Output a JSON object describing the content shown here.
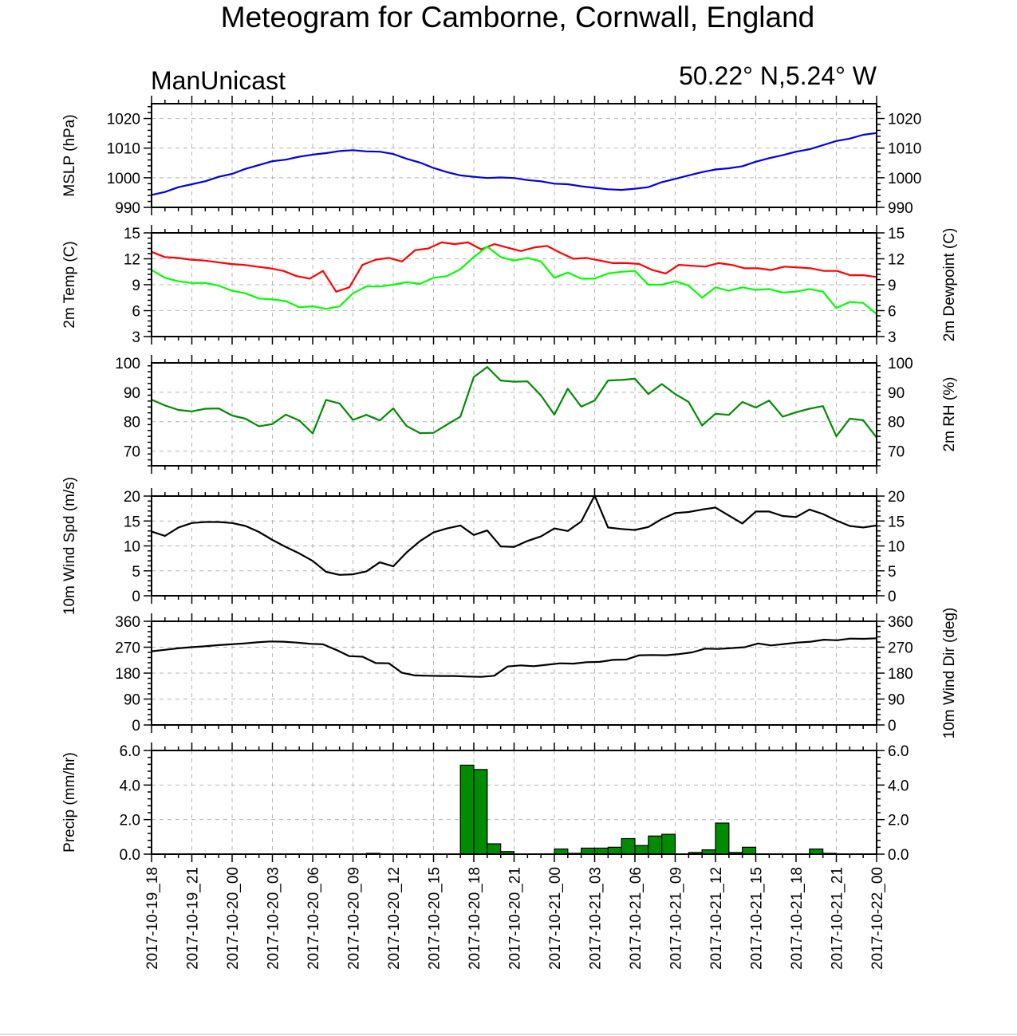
{
  "title": "Meteogram for Camborne, Cornwall, England",
  "model": "ManUnicast",
  "location": "50.22° N,5.24° W",
  "chart_data": {
    "type": "line",
    "x_labels": [
      "2017-10-19_18",
      "2017-10-19_21",
      "2017-10-20_00",
      "2017-10-20_03",
      "2017-10-20_06",
      "2017-10-20_09",
      "2017-10-20_12",
      "2017-10-20_15",
      "2017-10-20_18",
      "2017-10-20_21",
      "2017-10-21_00",
      "2017-10-21_03",
      "2017-10-21_06",
      "2017-10-21_09",
      "2017-10-21_12",
      "2017-10-21_15",
      "2017-10-21_18",
      "2017-10-21_21",
      "2017-10-22_00"
    ],
    "x_range_hours": [
      0,
      54
    ],
    "grid": true,
    "panels": [
      {
        "id": "mslp",
        "ylabel_left": "MSLP (hPa)",
        "ylabel_right": "",
        "ylim": [
          990,
          1025
        ],
        "yticks": [
          990,
          1000,
          1010,
          1020
        ],
        "ytick_labels": [
          "990",
          "1000",
          "1010",
          "1020"
        ],
        "right_tick_labels": true,
        "series": [
          {
            "color": "#0000e6",
            "type": "line",
            "values": [
              994.2,
              995.2,
              996.8,
              997.8,
              998.8,
              1000.3,
              1001.3,
              1003.0,
              1004.3,
              1005.6,
              1006.1,
              1007.1,
              1007.8,
              1008.3,
              1009.0,
              1009.3,
              1008.9,
              1008.8,
              1008.0,
              1006.4,
              1005.1,
              1003.3,
              1001.9,
              1000.8,
              1000.3,
              999.9,
              1000.1,
              999.9,
              999.2,
              998.8,
              998.0,
              997.8,
              997.1,
              996.6,
              996.1,
              995.9,
              996.3,
              996.8,
              998.5,
              999.6,
              1000.8,
              1001.9,
              1002.8,
              1003.2,
              1003.9,
              1005.4,
              1006.6,
              1007.6,
              1008.8,
              1009.6,
              1011.0,
              1012.4,
              1013.2,
              1014.5,
              1015.1
            ]
          }
        ]
      },
      {
        "id": "temp",
        "ylabel_left": "2m Temp (C)",
        "ylabel_right": "2m Dewpoint (C)",
        "ylim": [
          3,
          15
        ],
        "yticks": [
          3,
          6,
          9,
          12,
          15
        ],
        "ytick_labels": [
          "3",
          "6",
          "9",
          "12",
          "15"
        ],
        "right_tick_labels": true,
        "series": [
          {
            "color": "#ff0000",
            "type": "line",
            "values": [
              12.8,
              12.2,
              12.1,
              11.9,
              11.8,
              11.6,
              11.4,
              11.3,
              11.1,
              10.9,
              10.6,
              10.0,
              9.7,
              10.6,
              8.2,
              8.7,
              11.3,
              11.9,
              12.1,
              11.7,
              13.0,
              13.2,
              13.9,
              13.7,
              13.9,
              13.1,
              13.7,
              13.3,
              12.9,
              13.3,
              13.5,
              12.7,
              12.0,
              12.1,
              11.8,
              11.5,
              11.5,
              11.4,
              10.7,
              10.3,
              11.3,
              11.2,
              11.1,
              11.5,
              11.3,
              10.9,
              10.9,
              10.7,
              11.1,
              11.0,
              10.9,
              10.6,
              10.6,
              10.1,
              10.1,
              9.9
            ]
          },
          {
            "color": "#00ff00",
            "type": "line",
            "values": [
              10.7,
              9.8,
              9.4,
              9.2,
              9.2,
              8.9,
              8.3,
              8.0,
              7.4,
              7.3,
              7.1,
              6.4,
              6.5,
              6.2,
              6.5,
              8.0,
              8.8,
              8.8,
              9.0,
              9.3,
              9.1,
              9.8,
              10.0,
              10.8,
              12.2,
              13.4,
              12.2,
              11.8,
              12.1,
              11.7,
              9.8,
              10.4,
              9.7,
              9.7,
              10.3,
              10.5,
              10.6,
              9.0,
              9.0,
              9.4,
              8.9,
              7.5,
              8.7,
              8.3,
              8.7,
              8.4,
              8.5,
              8.1,
              8.2,
              8.5,
              8.2,
              6.3,
              7.0,
              6.9,
              5.6
            ]
          }
        ]
      },
      {
        "id": "rh",
        "ylabel_left": "",
        "ylabel_right": "2m RH (%)",
        "ylim": [
          65,
          100
        ],
        "yticks": [
          70,
          80,
          90,
          100
        ],
        "ytick_labels": [
          "70",
          "80",
          "90",
          "100"
        ],
        "right_tick_labels": true,
        "series": [
          {
            "color": "#008c00",
            "type": "line",
            "values": [
              87.5,
              85.5,
              84.0,
              83.5,
              84.4,
              84.5,
              82.1,
              81.0,
              78.4,
              79.2,
              82.4,
              80.4,
              76.0,
              87.4,
              86.2,
              80.6,
              82.3,
              80.4,
              84.5,
              78.5,
              76.1,
              76.2,
              79.0,
              81.7,
              95.2,
              98.6,
              94.0,
              93.6,
              93.7,
              88.9,
              82.4,
              91.2,
              85.1,
              87.2,
              94.0,
              94.2,
              94.6,
              89.4,
              92.8,
              89.4,
              86.7,
              78.7,
              82.7,
              82.3,
              86.7,
              84.8,
              87.2,
              81.7,
              83.2,
              84.4,
              85.3,
              75.0,
              81.0,
              80.5,
              74.6
            ]
          }
        ]
      },
      {
        "id": "wspd",
        "ylabel_left": "10m Wind Spd (m/s)",
        "ylabel_right": "",
        "ylim": [
          0,
          20
        ],
        "yticks": [
          0,
          5,
          10,
          15,
          20
        ],
        "ytick_labels": [
          "0",
          "5",
          "10",
          "15",
          "20"
        ],
        "right_tick_labels": true,
        "series": [
          {
            "color": "#000000",
            "type": "line",
            "values": [
              12.9,
              12.0,
              13.7,
              14.6,
              14.8,
              14.8,
              14.6,
              14.0,
              12.8,
              11.2,
              9.8,
              8.5,
              7.0,
              4.8,
              4.2,
              4.3,
              4.9,
              6.7,
              5.9,
              8.7,
              11.0,
              12.7,
              13.5,
              14.1,
              12.2,
              13.1,
              9.9,
              9.8,
              11.0,
              11.9,
              13.5,
              13.0,
              14.9,
              20.1,
              13.7,
              13.4,
              13.2,
              13.8,
              15.4,
              16.6,
              16.8,
              17.3,
              17.7,
              16.1,
              14.5,
              16.9,
              16.9,
              16.0,
              15.8,
              17.3,
              16.4,
              15.1,
              14.0,
              13.7,
              14.1
            ]
          }
        ]
      },
      {
        "id": "wdir",
        "ylabel_left": "",
        "ylabel_right": "10m Wind Dir (deg)",
        "ylim": [
          0,
          360
        ],
        "yticks": [
          0,
          90,
          180,
          270,
          360
        ],
        "ytick_labels": [
          "0",
          "90",
          "180",
          "270",
          "360"
        ],
        "right_tick_labels": true,
        "series": [
          {
            "color": "#000000",
            "type": "line",
            "values": [
              256,
              261,
              266,
              270,
              273,
              277,
              280,
              283,
              287,
              290,
              289,
              286,
              282,
              280,
              261,
              239,
              237,
              215,
              214,
              181,
              172,
              171,
              170,
              170,
              168,
              167,
              171,
              203,
              207,
              204,
              209,
              214,
              213,
              218,
              219,
              226,
              227,
              242,
              243,
              242,
              246,
              252,
              265,
              264,
              267,
              270,
              283,
              276,
              281,
              286,
              289,
              296,
              294,
              300,
              299,
              301
            ]
          }
        ]
      },
      {
        "id": "precip",
        "ylabel_left": "Precip (mm/hr)",
        "ylabel_right": "",
        "ylim": [
          0,
          6
        ],
        "yticks": [
          0,
          2,
          4,
          6
        ],
        "ytick_labels": [
          "0.0",
          "2.0",
          "4.0",
          "6.0"
        ],
        "right_tick_labels": true,
        "series": [
          {
            "color": "#008c00",
            "type": "bar",
            "values": [
              0,
              0,
              0,
              0,
              0,
              0,
              0,
              0,
              0,
              0,
              0,
              0,
              0,
              0,
              0,
              0,
              0.05,
              0,
              0,
              0,
              0,
              0,
              0,
              5.15,
              4.9,
              0.6,
              0.15,
              0,
              0,
              0.02,
              0.3,
              0.05,
              0.35,
              0.35,
              0.4,
              0.9,
              0.5,
              1.05,
              1.15,
              0,
              0.1,
              0.25,
              1.8,
              0.1,
              0.4,
              0.02,
              0.02,
              0,
              0,
              0.3,
              0.05,
              0,
              0,
              0
            ]
          }
        ]
      }
    ]
  }
}
